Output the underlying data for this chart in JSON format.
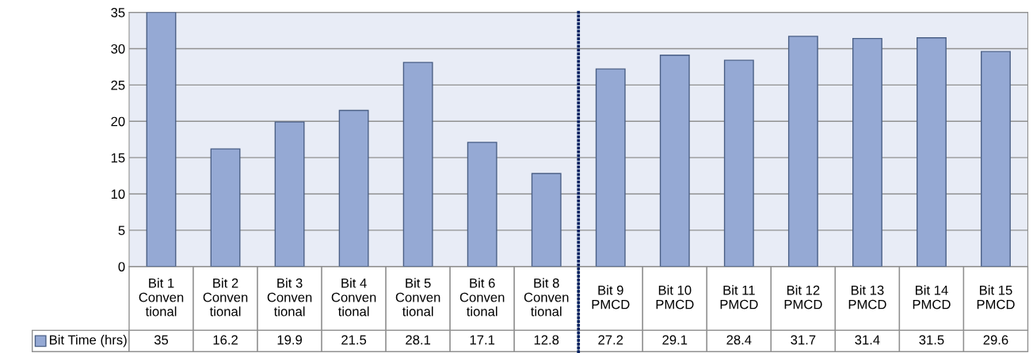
{
  "chart_data": {
    "type": "bar",
    "categories": [
      "Bit 1\nConven\ntional",
      "Bit 2\nConven\ntional",
      "Bit 3\nConven\ntional",
      "Bit 4\nConven\ntional",
      "Bit 5\nConven\ntional",
      "Bit 6\nConven\ntional",
      "Bit 8\nConven\ntional",
      "Bit 9\nPMCD",
      "Bit 10\nPMCD",
      "Bit 11\nPMCD",
      "Bit 12\nPMCD",
      "Bit 13\nPMCD",
      "Bit 14\nPMCD",
      "Bit 15\nPMCD"
    ],
    "series": [
      {
        "name": "Bit Time (hrs)",
        "color": "#95a9d4",
        "values": [
          35,
          16.2,
          19.9,
          21.5,
          28.1,
          17.1,
          12.8,
          27.2,
          29.1,
          28.4,
          31.7,
          31.4,
          31.5,
          29.6
        ]
      }
    ],
    "ylim": [
      0,
      35
    ],
    "yticks": [
      0,
      5,
      10,
      15,
      20,
      25,
      30,
      35
    ],
    "grid": "y",
    "data_labels": true
  }
}
